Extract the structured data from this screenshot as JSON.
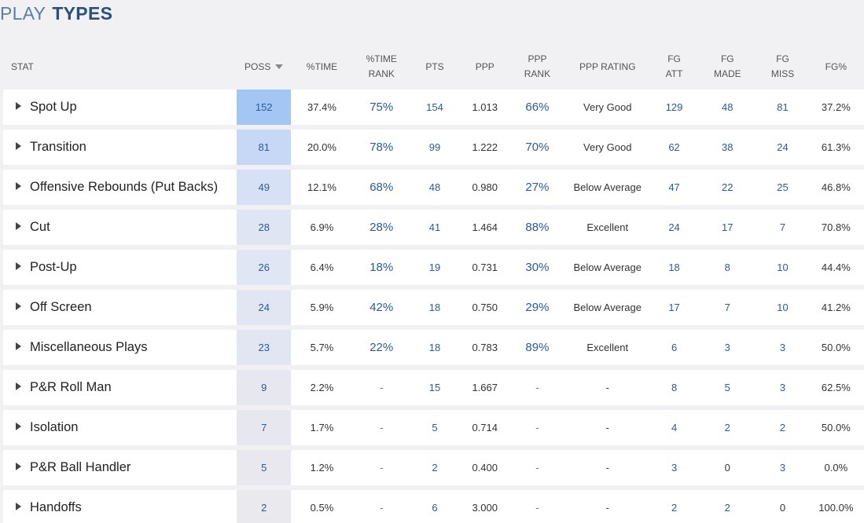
{
  "title": {
    "part1": "PLAY",
    "part2": "TYPES"
  },
  "columns": {
    "stat": "STAT",
    "poss": "POSS",
    "pct_time": "%TIME",
    "pct_time_rank_1": "%TIME",
    "pct_time_rank_2": "RANK",
    "pts": "PTS",
    "ppp": "PPP",
    "ppp_rank_1": "PPP",
    "ppp_rank_2": "RANK",
    "ppp_rating": "PPP RATING",
    "fg_att_1": "FG",
    "fg_att_2": "ATT",
    "fg_made_1": "FG",
    "fg_made_2": "MADE",
    "fg_miss_1": "FG",
    "fg_miss_2": "MISS",
    "fg_pct": "FG%"
  },
  "rows": [
    {
      "name": "Spot Up",
      "poss": "152",
      "pct_time": "37.4%",
      "time_rank": "75%",
      "pts": "154",
      "ppp": "1.013",
      "ppp_rank": "66%",
      "rating": "Very Good",
      "fg_att": "129",
      "fg_made": "48",
      "fg_miss": "81",
      "fg_pct": "37.2%",
      "poss_color": "#a3c6f5"
    },
    {
      "name": "Transition",
      "poss": "81",
      "pct_time": "20.0%",
      "time_rank": "78%",
      "pts": "99",
      "ppp": "1.222",
      "ppp_rank": "70%",
      "rating": "Very Good",
      "fg_att": "62",
      "fg_made": "38",
      "fg_miss": "24",
      "fg_pct": "61.3%",
      "poss_color": "#c7d8f6"
    },
    {
      "name": "Offensive Rebounds (Put Backs)",
      "poss": "49",
      "pct_time": "12.1%",
      "time_rank": "68%",
      "pts": "48",
      "ppp": "0.980",
      "ppp_rank": "27%",
      "rating": "Below Average",
      "fg_att": "47",
      "fg_made": "22",
      "fg_miss": "25",
      "fg_pct": "46.8%",
      "poss_color": "#d7e1f5"
    },
    {
      "name": "Cut",
      "poss": "28",
      "pct_time": "6.9%",
      "time_rank": "28%",
      "pts": "41",
      "ppp": "1.464",
      "ppp_rank": "88%",
      "rating": "Excellent",
      "fg_att": "24",
      "fg_made": "17",
      "fg_miss": "7",
      "fg_pct": "70.8%",
      "poss_color": "#dfe5f3"
    },
    {
      "name": "Post-Up",
      "poss": "26",
      "pct_time": "6.4%",
      "time_rank": "18%",
      "pts": "19",
      "ppp": "0.731",
      "ppp_rank": "30%",
      "rating": "Below Average",
      "fg_att": "18",
      "fg_made": "8",
      "fg_miss": "10",
      "fg_pct": "44.4%",
      "poss_color": "#e0e6f3"
    },
    {
      "name": "Off Screen",
      "poss": "24",
      "pct_time": "5.9%",
      "time_rank": "42%",
      "pts": "18",
      "ppp": "0.750",
      "ppp_rank": "29%",
      "rating": "Below Average",
      "fg_att": "17",
      "fg_made": "7",
      "fg_miss": "10",
      "fg_pct": "41.2%",
      "poss_color": "#e1e6f2"
    },
    {
      "name": "Miscellaneous Plays",
      "poss": "23",
      "pct_time": "5.7%",
      "time_rank": "22%",
      "pts": "18",
      "ppp": "0.783",
      "ppp_rank": "89%",
      "rating": "Excellent",
      "fg_att": "6",
      "fg_made": "3",
      "fg_miss": "3",
      "fg_pct": "50.0%",
      "poss_color": "#e2e6f2"
    },
    {
      "name": "P&R Roll Man",
      "poss": "9",
      "pct_time": "2.2%",
      "time_rank": "-",
      "pts": "15",
      "ppp": "1.667",
      "ppp_rank": "-",
      "rating": "-",
      "fg_att": "8",
      "fg_made": "5",
      "fg_miss": "3",
      "fg_pct": "62.5%",
      "poss_color": "#e6e7ef"
    },
    {
      "name": "Isolation",
      "poss": "7",
      "pct_time": "1.7%",
      "time_rank": "-",
      "pts": "5",
      "ppp": "0.714",
      "ppp_rank": "-",
      "rating": "-",
      "fg_att": "4",
      "fg_made": "2",
      "fg_miss": "2",
      "fg_pct": "50.0%",
      "poss_color": "#e7e8ef"
    },
    {
      "name": "P&R Ball Handler",
      "poss": "5",
      "pct_time": "1.2%",
      "time_rank": "-",
      "pts": "2",
      "ppp": "0.400",
      "ppp_rank": "-",
      "rating": "-",
      "fg_att": "3",
      "fg_made": "0",
      "fg_miss": "3",
      "fg_pct": "0.0%",
      "poss_color": "#e8e8ee"
    },
    {
      "name": "Handoffs",
      "poss": "2",
      "pct_time": "0.5%",
      "time_rank": "-",
      "pts": "6",
      "ppp": "3.000",
      "ppp_rank": "-",
      "rating": "-",
      "fg_att": "2",
      "fg_made": "2",
      "fg_miss": "0",
      "fg_pct": "100.0%",
      "poss_color": "#e9e9ee"
    }
  ]
}
